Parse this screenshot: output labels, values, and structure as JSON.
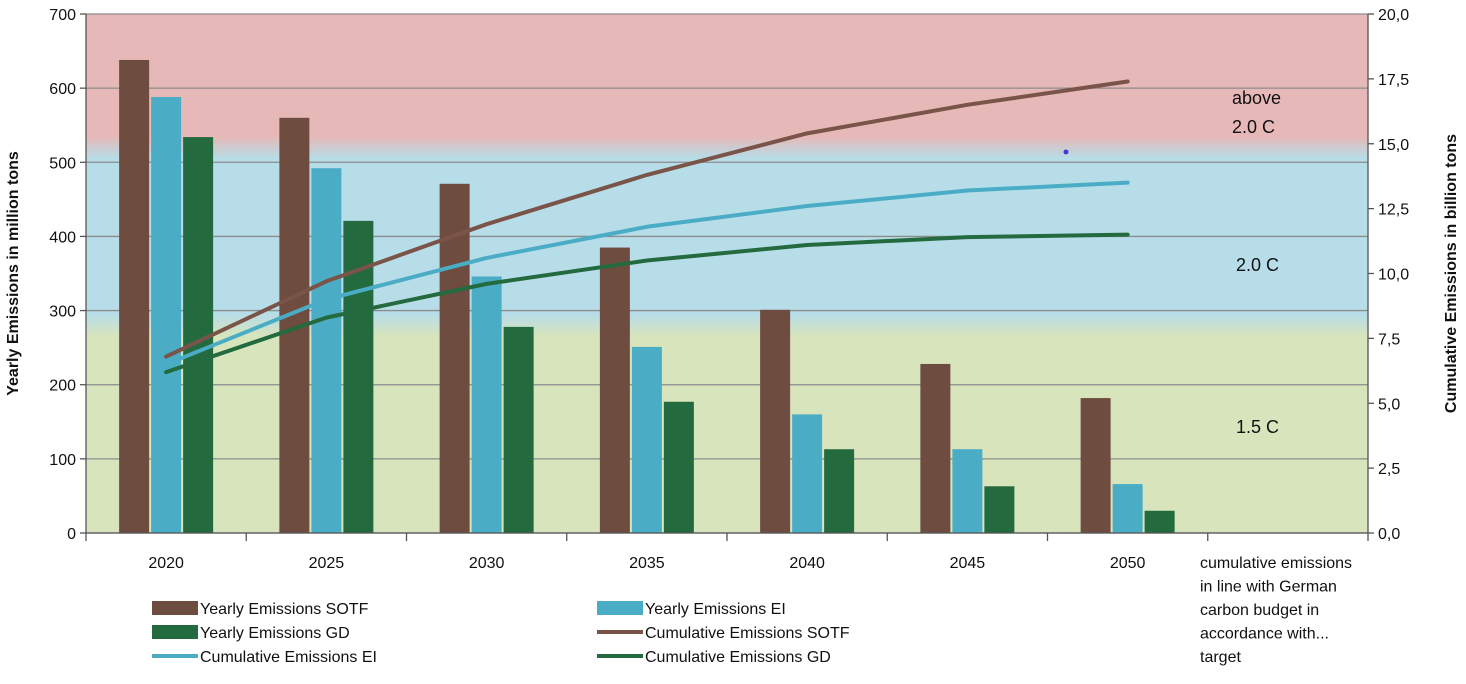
{
  "chart_data": {
    "type": "bar",
    "title": "",
    "categories": [
      "2020",
      "2025",
      "2030",
      "2035",
      "2040",
      "2045",
      "2050"
    ],
    "extra_category_note": [
      "cumulative emissions",
      "in line with German",
      "carbon budget in",
      "accordance with...",
      "target"
    ],
    "ylabel_left": "Yearly Emissions in million tons",
    "ylabel_right": "Cumulative Emissions in billion tons",
    "ylim_left": [
      0,
      700
    ],
    "yticks_left": [
      "0",
      "100",
      "200",
      "300",
      "400",
      "500",
      "600",
      "700"
    ],
    "ylim_right": [
      0,
      20
    ],
    "yticks_right": [
      "0,0",
      "2,5",
      "5,0",
      "7,5",
      "10,0",
      "12,5",
      "15,0",
      "17,5",
      "20,0"
    ],
    "grid": true,
    "legend_position": "bottom",
    "bar_series": [
      {
        "name": "Yearly Emissions SOTF",
        "color": "#6e4c3f",
        "values": [
          638,
          560,
          471,
          385,
          301,
          228,
          182
        ]
      },
      {
        "name": "Yearly Emissions EI",
        "color": "#4bacc6",
        "values": [
          588,
          492,
          346,
          251,
          160,
          113,
          66
        ]
      },
      {
        "name": "Yearly Emissions GD",
        "color": "#236b3e",
        "values": [
          534,
          421,
          278,
          177,
          113,
          63,
          30
        ]
      }
    ],
    "line_series": [
      {
        "name": "Cumulative Emissions SOTF",
        "color": "#7a5448",
        "x": [
          2020,
          2025,
          2030,
          2035,
          2040,
          2045,
          2050
        ],
        "values": [
          6.8,
          9.7,
          11.9,
          13.8,
          15.4,
          16.5,
          17.4
        ]
      },
      {
        "name": "Cumulative Emissions EI",
        "color": "#4bacc6",
        "x": [
          2020,
          2025,
          2030,
          2035,
          2040,
          2045,
          2050
        ],
        "values": [
          6.5,
          9.0,
          10.6,
          11.8,
          12.6,
          13.2,
          13.5
        ]
      },
      {
        "name": "Cumulative Emissions GD",
        "color": "#236b3e",
        "x": [
          2020,
          2025,
          2030,
          2035,
          2040,
          2045,
          2050
        ],
        "values": [
          6.2,
          8.3,
          9.6,
          10.5,
          11.1,
          11.4,
          11.5
        ]
      }
    ],
    "bands": [
      {
        "label": "1.5 C",
        "from": 0,
        "to": 280,
        "color": "#d8e4bc"
      },
      {
        "label": "2.0 C",
        "from": 280,
        "to": 520,
        "color": "#b7dde8"
      },
      {
        "label_lines": [
          "above",
          "2.0 C"
        ],
        "from": 520,
        "to": 700,
        "color": "#e6b8b7"
      }
    ]
  },
  "legend": {
    "items": [
      {
        "name": "Yearly Emissions SOTF",
        "kind": "bar",
        "color": "#6e4c3f"
      },
      {
        "name": "Yearly Emissions EI",
        "kind": "bar",
        "color": "#4bacc6"
      },
      {
        "name": "Yearly Emissions GD",
        "kind": "bar",
        "color": "#236b3e"
      },
      {
        "name": "Cumulative Emissions SOTF",
        "kind": "line",
        "color": "#7a5448"
      },
      {
        "name": "Cumulative Emissions EI",
        "kind": "line",
        "color": "#4bacc6"
      },
      {
        "name": "Cumulative Emissions GD",
        "kind": "line",
        "color": "#236b3e"
      }
    ]
  }
}
